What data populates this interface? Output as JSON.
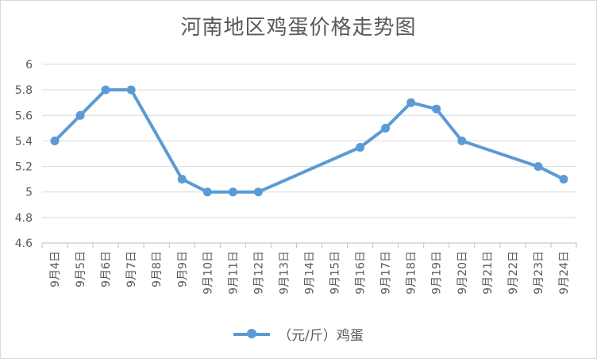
{
  "chart_data": {
    "type": "line",
    "title": "河南地区鸡蛋价格走势图",
    "categories": [
      "9月4日",
      "9月5日",
      "9月6日",
      "9月7日",
      "9月8日",
      "9月9日",
      "9月10日",
      "9月11日",
      "9月12日",
      "9月13日",
      "9月14日",
      "9月15日",
      "9月16日",
      "9月17日",
      "9月18日",
      "9月19日",
      "9月20日",
      "9月21日",
      "9月22日",
      "9月23日",
      "9月24日"
    ],
    "series": [
      {
        "name": "（元/斤）鸡蛋",
        "color": "#5b9bd5",
        "values": [
          5.4,
          5.6,
          5.8,
          5.8,
          null,
          5.1,
          5.0,
          5.0,
          5.0,
          null,
          null,
          null,
          5.35,
          5.5,
          5.7,
          5.65,
          5.4,
          null,
          null,
          5.2,
          5.1
        ]
      }
    ],
    "ylim": [
      4.6,
      6
    ],
    "yticks": [
      "4.6",
      "4.8",
      "5",
      "5.2",
      "5.4",
      "5.6",
      "5.8",
      "6"
    ],
    "xlabel": "",
    "ylabel": "",
    "grid": true,
    "legend_position": "bottom"
  }
}
